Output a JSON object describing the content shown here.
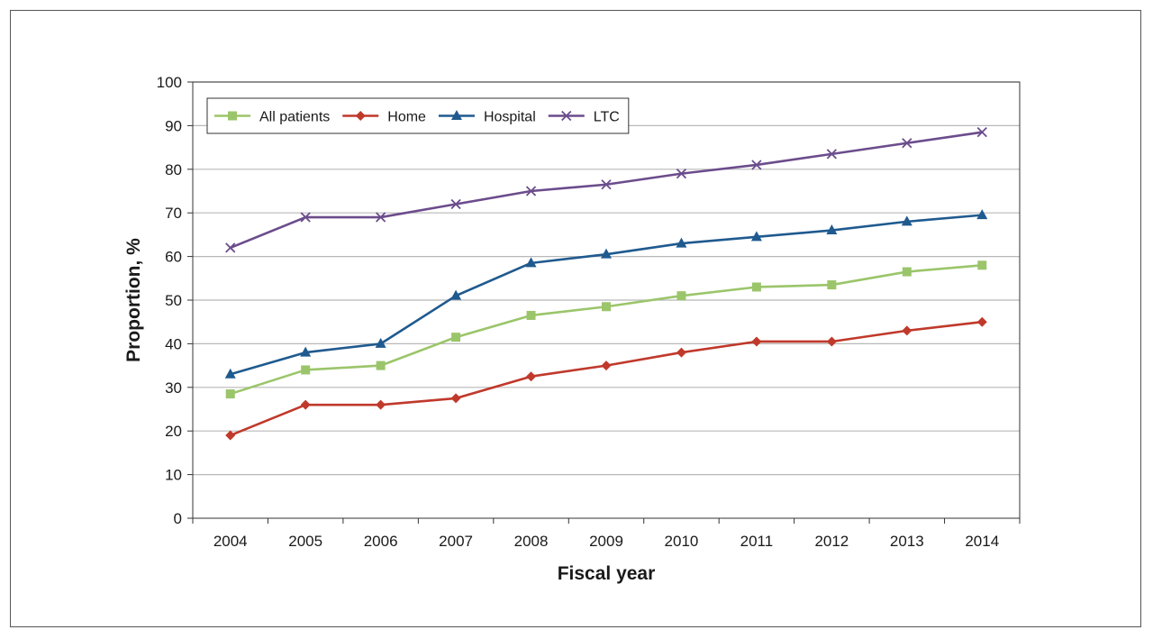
{
  "chart_data": {
    "type": "line",
    "title": "",
    "xlabel": "Fiscal year",
    "ylabel": "Proportion, %",
    "ylim": [
      0,
      100
    ],
    "yticks": [
      0,
      10,
      20,
      30,
      40,
      50,
      60,
      70,
      80,
      90,
      100
    ],
    "grid": "horizontal",
    "legend_position": "top-left",
    "categories": [
      "2004",
      "2005",
      "2006",
      "2007",
      "2008",
      "2009",
      "2010",
      "2011",
      "2012",
      "2013",
      "2014"
    ],
    "series": [
      {
        "name": "All patients",
        "color": "#9bc56a",
        "marker": "square",
        "values": [
          28.5,
          34,
          35,
          41.5,
          46.5,
          48.5,
          51,
          53,
          53.5,
          56.5,
          58
        ]
      },
      {
        "name": "Home",
        "color": "#c0392b",
        "marker": "diamond",
        "values": [
          19,
          26,
          26,
          27.5,
          32.5,
          35,
          38,
          40.5,
          40.5,
          43,
          45
        ]
      },
      {
        "name": "Hospital",
        "color": "#1f5a8f",
        "marker": "triangle",
        "values": [
          33,
          38,
          40,
          51,
          58.5,
          60.5,
          63,
          64.5,
          66,
          68,
          69.5
        ]
      },
      {
        "name": "LTC",
        "color": "#6b4c8c",
        "marker": "x",
        "values": [
          62,
          69,
          69,
          72,
          75,
          76.5,
          79,
          81,
          83.5,
          86,
          88.5
        ]
      }
    ]
  }
}
